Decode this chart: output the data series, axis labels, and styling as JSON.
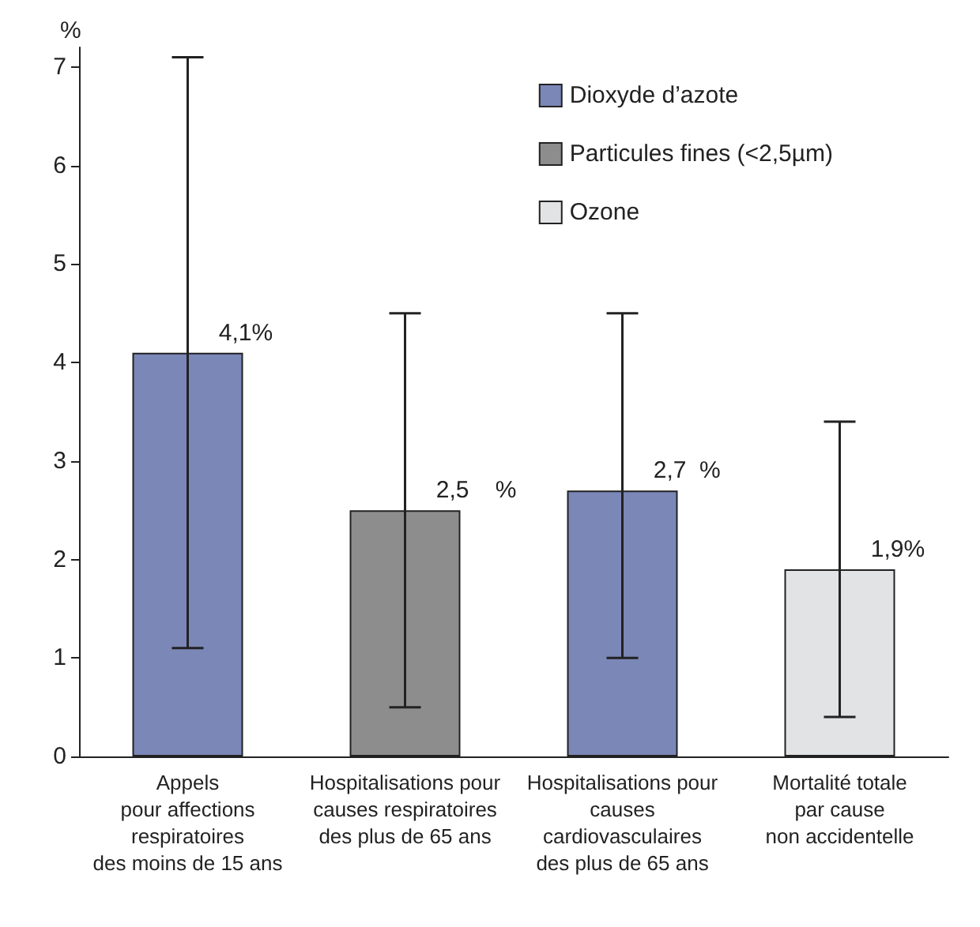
{
  "chart_data": {
    "type": "bar",
    "ylabel": "%",
    "stacked": true,
    "categories": [
      "Appels\npour affections\nrespiratoires\ndes moins de 15 ans",
      "Hospitalisations pour\ncauses respiratoires\ndes plus de 65 ans",
      "Hospitalisations pour\ncauses\ncardiovasculaires\ndes plus de 65 ans",
      "Mortalité totale\npar cause\nnon accidentelle"
    ],
    "series": [
      {
        "name": "Dioxyde d’azote",
        "color": "#7b87b7",
        "values": [
          4.1,
          null,
          2.7,
          null
        ],
        "errors": [
          [
            1.1,
            7.1
          ],
          null,
          [
            1.0,
            4.5
          ],
          null
        ],
        "value_labels": [
          "4,1%",
          null,
          "2,7  %",
          null
        ]
      },
      {
        "name": "Particules fines (<2,5µm)",
        "color": "#8d8d8d",
        "values": [
          null,
          2.5,
          null,
          null
        ],
        "errors": [
          null,
          [
            0.5,
            4.5
          ],
          null,
          null
        ],
        "value_labels": [
          null,
          "2,5    %",
          null,
          null
        ]
      },
      {
        "name": "Ozone",
        "color": "#e2e3e5",
        "values": [
          null,
          null,
          null,
          1.9
        ],
        "errors": [
          null,
          null,
          null,
          [
            0.4,
            3.4
          ]
        ],
        "value_labels": [
          null,
          null,
          null,
          "1,9%"
        ]
      }
    ],
    "ylim": [
      0,
      7.2
    ],
    "yticks": [
      0,
      1,
      2,
      3,
      4,
      5,
      6,
      7
    ],
    "grid": false,
    "legend": "top right"
  }
}
